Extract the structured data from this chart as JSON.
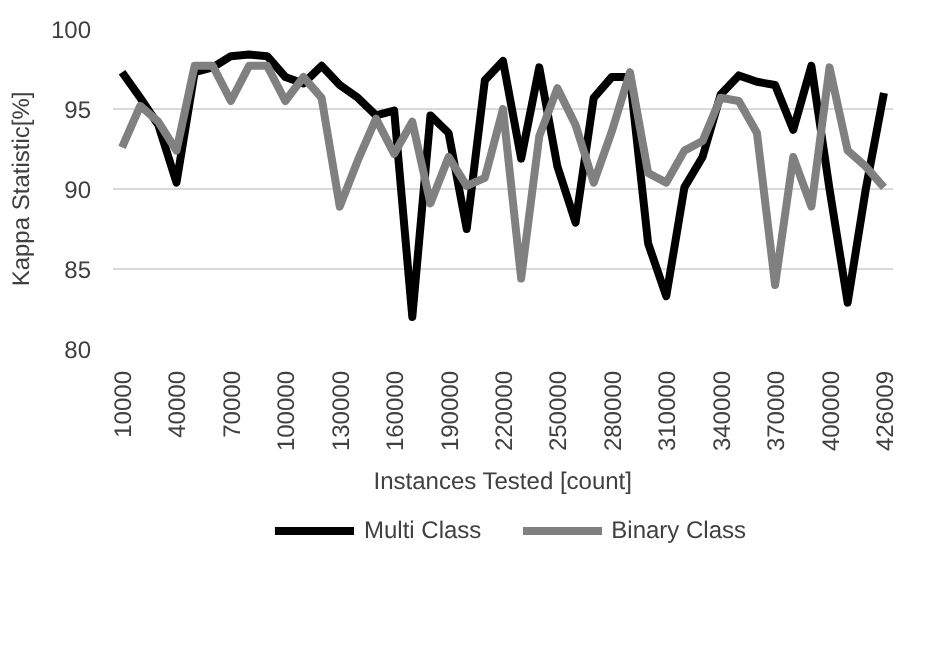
{
  "chart_data": {
    "type": "line",
    "xlabel": "Instances Tested [count]",
    "ylabel": "Kappa Statistic[%]",
    "categories": [
      "10000",
      null,
      null,
      "40000",
      null,
      null,
      "70000",
      null,
      null,
      "100000",
      null,
      null,
      "130000",
      null,
      null,
      "160000",
      null,
      null,
      "190000",
      null,
      null,
      "220000",
      null,
      null,
      "250000",
      null,
      null,
      "280000",
      null,
      null,
      "310000",
      null,
      null,
      "340000",
      null,
      null,
      "370000",
      null,
      null,
      "400000",
      null,
      null,
      "426009"
    ],
    "series": [
      {
        "name": "Multi Class",
        "color": "#000000",
        "values": [
          97.3,
          95.7,
          94.0,
          90.4,
          97.3,
          97.6,
          98.3,
          98.4,
          98.3,
          97.0,
          96.6,
          97.7,
          96.5,
          95.7,
          94.6,
          94.9,
          82.0,
          94.6,
          93.5,
          87.5,
          96.8,
          98.0,
          91.9,
          97.6,
          91.4,
          87.9,
          95.7,
          97.0,
          97.0,
          86.6,
          83.3,
          90.1,
          92.0,
          95.9,
          97.1,
          96.7,
          96.5,
          93.7,
          97.7,
          90.0,
          82.9,
          90.0,
          96.0
        ]
      },
      {
        "name": "Binary Class",
        "color": "#808080",
        "values": [
          92.6,
          95.2,
          94.2,
          92.4,
          97.7,
          97.7,
          95.5,
          97.7,
          97.7,
          95.5,
          97.0,
          95.7,
          88.9,
          91.8,
          94.4,
          92.2,
          94.2,
          89.1,
          92.0,
          90.2,
          90.7,
          95.0,
          84.4,
          93.3,
          96.3,
          94.0,
          90.4,
          93.6,
          97.3,
          91.0,
          90.4,
          92.4,
          93.0,
          95.7,
          95.5,
          93.5,
          84.0,
          92.0,
          88.9,
          97.6,
          92.4,
          91.4,
          90.1
        ]
      }
    ],
    "ylim": [
      80,
      100
    ],
    "yticks": [
      80,
      85,
      90,
      95,
      100
    ],
    "grid": "y",
    "legend": "bottom",
    "marker": "none",
    "line_style": "solid"
  }
}
